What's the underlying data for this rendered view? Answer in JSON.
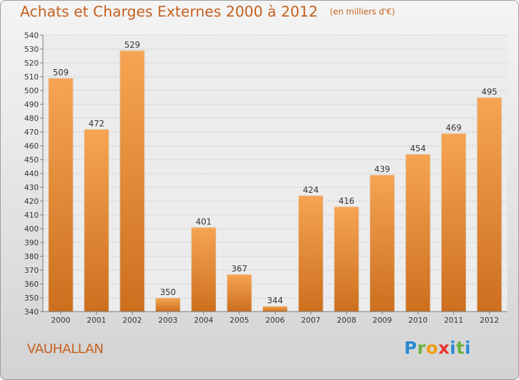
{
  "chart_data": {
    "type": "bar",
    "title": "Achats et Charges Externes 2000 à 2012",
    "unit_label": "(en milliers d'€)",
    "categories": [
      "2000",
      "2001",
      "2002",
      "2003",
      "2004",
      "2005",
      "2006",
      "2007",
      "2008",
      "2009",
      "2010",
      "2011",
      "2012"
    ],
    "values": [
      509,
      472,
      529,
      350,
      401,
      367,
      344,
      424,
      416,
      439,
      454,
      469,
      495
    ],
    "ylim": [
      340,
      540
    ],
    "yticks": [
      340,
      350,
      360,
      370,
      380,
      390,
      400,
      410,
      420,
      430,
      440,
      450,
      460,
      470,
      480,
      490,
      500,
      510,
      520,
      530,
      540
    ],
    "grid": true,
    "bar_color_top": "#f6a553",
    "bar_color_bottom": "#cc6f1e",
    "text_color": "#c5611f"
  },
  "commune": "VAUHALLAN",
  "logo": {
    "letters": [
      "P",
      "r",
      "o",
      "x",
      "i",
      "t",
      "i"
    ],
    "colors": [
      "#2a8ad4",
      "#6cb33f",
      "#f39c12",
      "#e5342e",
      "#2a8ad4",
      "#6cb33f",
      "#2a8ad4"
    ]
  }
}
